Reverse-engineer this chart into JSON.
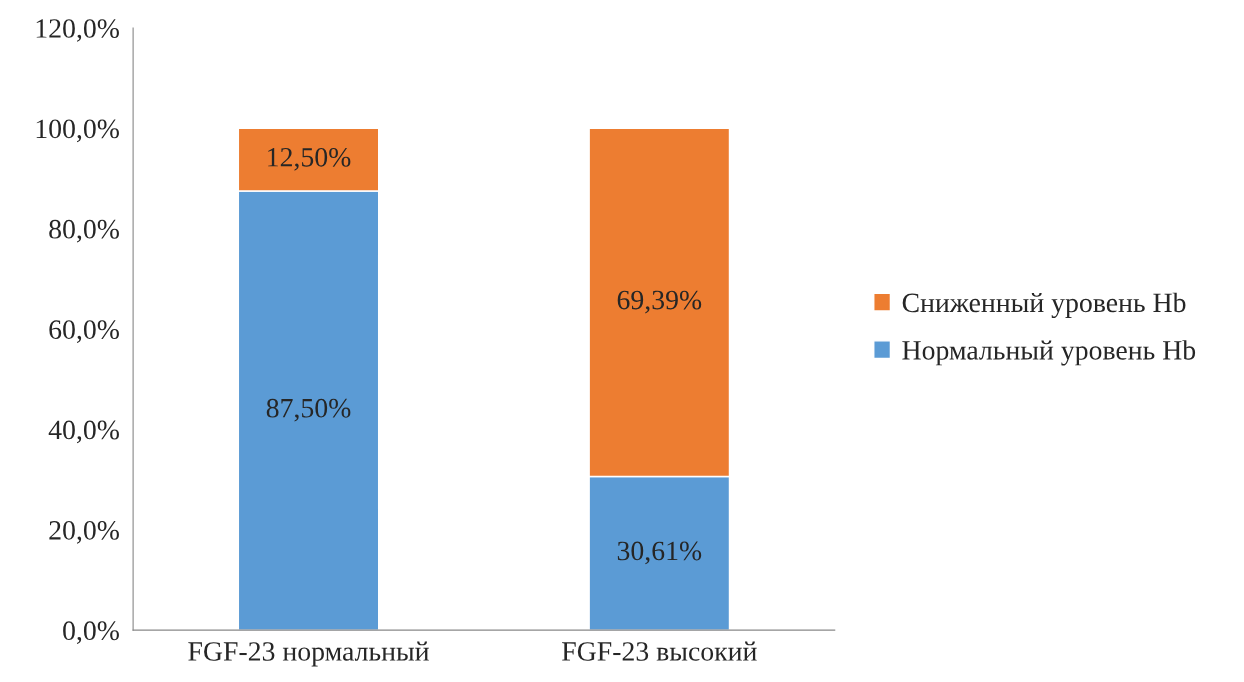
{
  "chart_data": {
    "type": "bar",
    "stacked": true,
    "categories": [
      "FGF-23 нормальный",
      "FGF-23 высокий"
    ],
    "series": [
      {
        "name": "Нормальный уровень Hb",
        "color": "#5b9bd5",
        "values": [
          87.5,
          30.61
        ],
        "value_labels": [
          "87,50%",
          "30,61%"
        ]
      },
      {
        "name": "Сниженный уровень Hb",
        "color": "#ed7d31",
        "values": [
          12.5,
          69.39
        ],
        "value_labels": [
          "12,50%",
          "69,39%"
        ]
      }
    ],
    "ylim": [
      0,
      120
    ],
    "yticks": [
      {
        "value": 0,
        "label": "0,0%"
      },
      {
        "value": 20,
        "label": "20,0%"
      },
      {
        "value": 40,
        "label": "40,0%"
      },
      {
        "value": 60,
        "label": "60,0%"
      },
      {
        "value": 80,
        "label": "80,0%"
      },
      {
        "value": 100,
        "label": "100,0%"
      },
      {
        "value": 120,
        "label": "120,0%"
      }
    ],
    "grid": false,
    "legend": "right"
  }
}
